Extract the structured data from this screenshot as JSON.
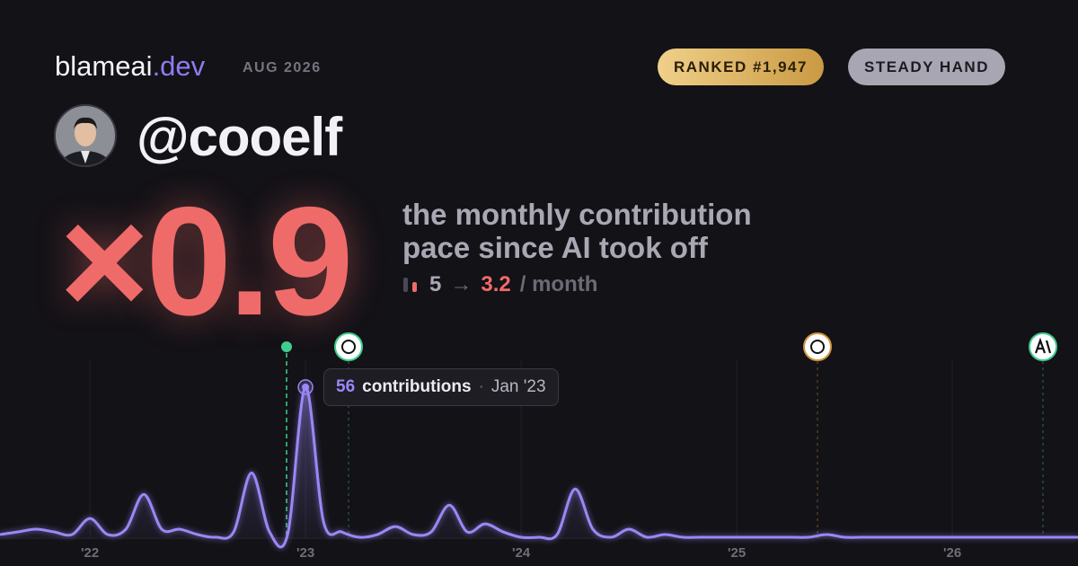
{
  "header": {
    "brand": "blameai",
    "brand_suffix": ".dev",
    "date": "AUG 2026",
    "badges": [
      "RANKED #1,947",
      "STEADY HAND"
    ]
  },
  "profile": {
    "handle": "@cooelf"
  },
  "score": {
    "multiplier": "×0.9",
    "description": [
      "the monthly contribution",
      "pace since AI took off"
    ],
    "before": "5",
    "arrow": "→",
    "after": "3.2",
    "unit": "/ month"
  },
  "tooltip": {
    "label": "contributions",
    "separator": "·",
    "date": "Jan '23"
  },
  "chart_data": {
    "type": "line",
    "color": "#9b87f5",
    "x": [
      2021.583,
      2021.667,
      2021.75,
      2021.833,
      2021.917,
      2022,
      2022.083,
      2022.167,
      2022.25,
      2022.333,
      2022.417,
      2022.5,
      2022.583,
      2022.667,
      2022.75,
      2022.833,
      2022.917,
      2023,
      2023.083,
      2023.167,
      2023.25,
      2023.333,
      2023.417,
      2023.5,
      2023.583,
      2023.667,
      2023.75,
      2023.833,
      2023.917,
      2024,
      2024.083,
      2024.167,
      2024.25,
      2024.333,
      2024.417,
      2024.5,
      2024.583,
      2024.667,
      2024.75,
      2024.833,
      2024.917,
      2025,
      2025.083,
      2025.167,
      2025.25,
      2025.333,
      2025.417,
      2025.5,
      2025.583,
      2025.667,
      2025.75,
      2025.833,
      2025.917,
      2026,
      2026.083,
      2026.167,
      2026.25,
      2026.333,
      2026.417,
      2026.5,
      2026.583
    ],
    "values": [
      1,
      2,
      3,
      2,
      1,
      7,
      1,
      3,
      16,
      3,
      3,
      1,
      0,
      2,
      24,
      2,
      1,
      56,
      6,
      2,
      0,
      1,
      4,
      1,
      2,
      12,
      2,
      5,
      2,
      0,
      0,
      1,
      18,
      3,
      0,
      3,
      0,
      1,
      0,
      0,
      0,
      0,
      0,
      0,
      0,
      0,
      1,
      0,
      0,
      0,
      0,
      0,
      0,
      0,
      0,
      0,
      0,
      0,
      0,
      0,
      0
    ],
    "xlim": [
      2021.583,
      2026.583
    ],
    "xticks": [
      {
        "value": 2022,
        "label": "'22"
      },
      {
        "value": 2023,
        "label": "'23"
      },
      {
        "value": 2024,
        "label": "'24"
      },
      {
        "value": 2025,
        "label": "'25"
      },
      {
        "value": 2026,
        "label": "'26"
      }
    ],
    "ylim": [
      0,
      60
    ],
    "grid": true
  }
}
